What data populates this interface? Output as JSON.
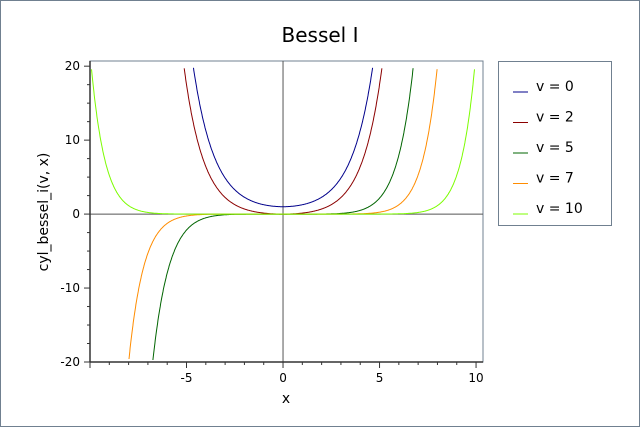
{
  "chart_data": {
    "type": "line",
    "title": "Bessel I",
    "xlabel": "x",
    "ylabel": "cyl_bessel_i(v, x)",
    "function": "cyl_bessel_i",
    "xlim": [
      -10,
      10.36
    ],
    "ylim": [
      -20,
      20.7
    ],
    "x_ticks": [
      -5,
      0,
      5,
      10
    ],
    "y_ticks": [
      -20,
      -10,
      0,
      10,
      20
    ],
    "grid": false,
    "legend_position": "right",
    "series": [
      {
        "name": "v = 0",
        "v": 0,
        "color": "#00008b"
      },
      {
        "name": "v = 2",
        "v": 2,
        "color": "#8b0000"
      },
      {
        "name": "v = 5",
        "v": 5,
        "color": "#006400"
      },
      {
        "name": "v = 7",
        "v": 7,
        "color": "#ff8c00"
      },
      {
        "name": "v = 10",
        "v": 10,
        "color": "#7cfc00"
      }
    ],
    "frame_color": "#708090"
  }
}
